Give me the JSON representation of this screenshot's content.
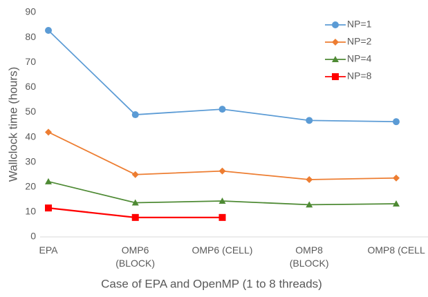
{
  "chart_data": {
    "type": "line",
    "x_label": "Case of EPA and OpenMP (1 to 8 threads)",
    "y_label": "Wallclock time (hours)",
    "categories": [
      "EPA",
      "OMP6\n(BLOCK)",
      "OMP6 (CELL)",
      "OMP8\n(BLOCK)",
      "OMP8 (CELL"
    ],
    "series": [
      {
        "name": "NP=1",
        "color": "#5b9bd5",
        "marker": "circle",
        "values": [
          82.8,
          49,
          51.2,
          46.7,
          46.2
        ]
      },
      {
        "name": "NP=2",
        "color": "#ed7d31",
        "marker": "diamond",
        "values": [
          42,
          25,
          26.4,
          23,
          23.6
        ]
      },
      {
        "name": "NP=4",
        "color": "#4e8a34",
        "marker": "triangle",
        "values": [
          22.2,
          13.7,
          14.4,
          12.9,
          13.3
        ]
      },
      {
        "name": "NP=8",
        "color": "#ff0000",
        "marker": "square",
        "values": [
          11.6,
          7.8,
          7.8,
          null,
          null
        ]
      }
    ],
    "ylim": [
      0,
      90
    ],
    "yticks": [
      0,
      10,
      20,
      30,
      40,
      50,
      60,
      70,
      80,
      90
    ],
    "grid": false,
    "legend": "top-right"
  }
}
